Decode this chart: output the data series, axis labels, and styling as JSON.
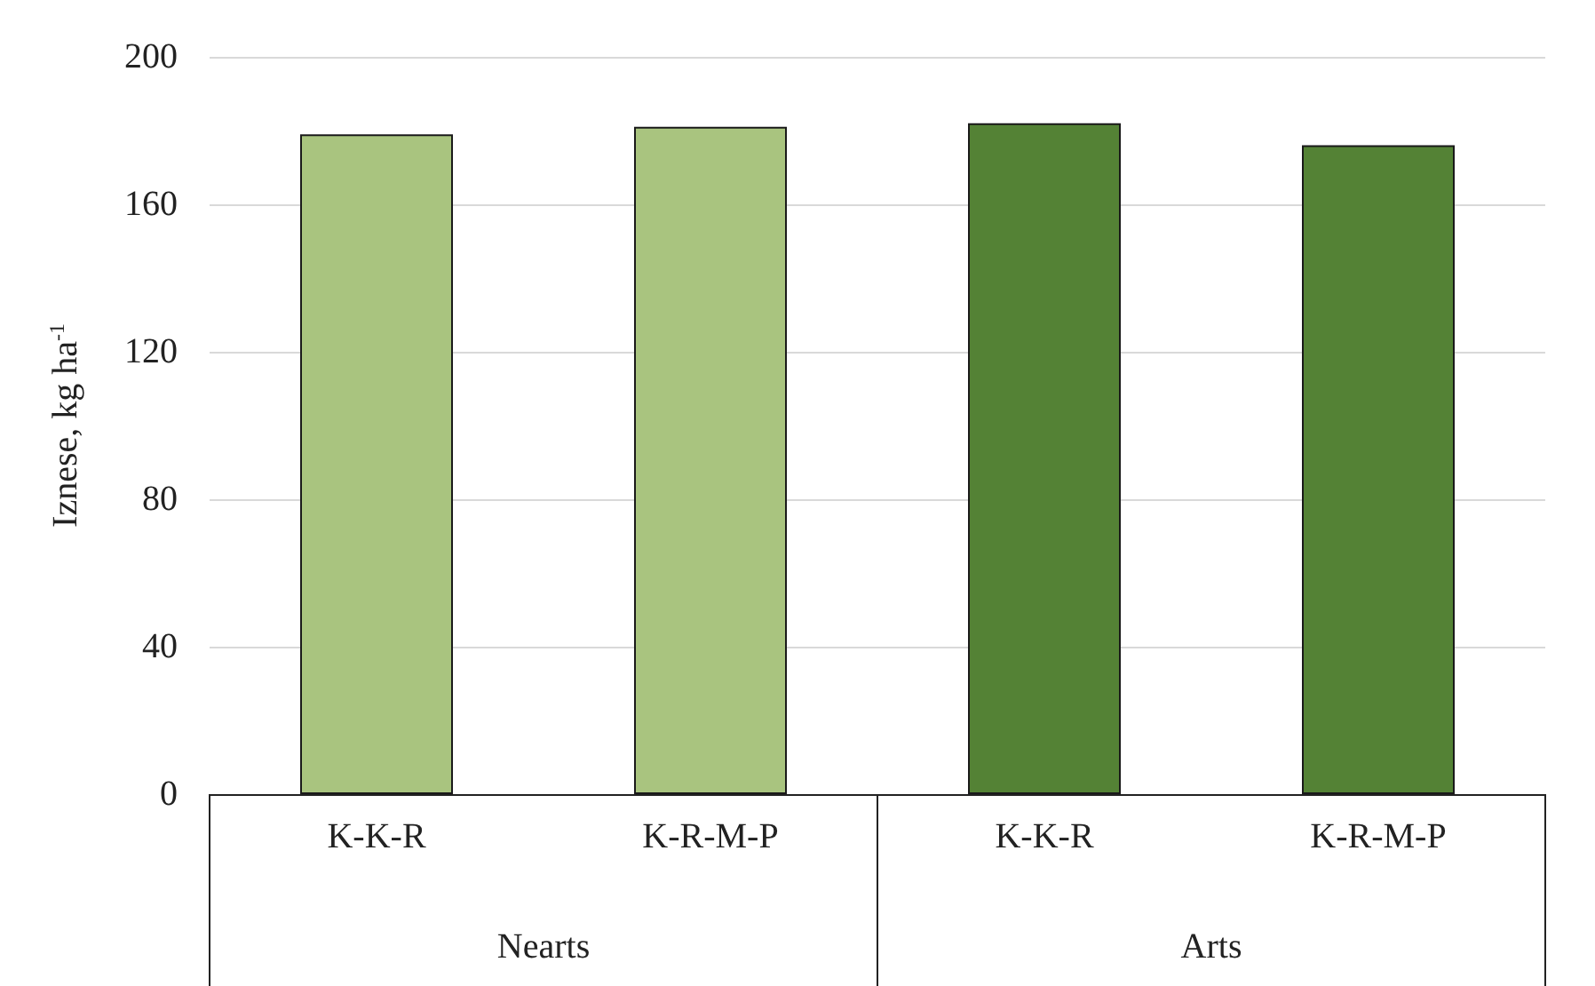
{
  "chart_data": {
    "type": "bar",
    "ylabel": "Iznese, kg ha$^{-1}$",
    "categories": [
      "K-K-R",
      "K-R-M-P",
      "K-K-R",
      "K-R-M-P"
    ],
    "values": [
      179,
      181,
      182,
      176
    ],
    "colors": [
      "#a9c47f",
      "#a9c47f",
      "#548235",
      "#548235"
    ],
    "annotations": [
      "Nearts",
      "Arts"
    ],
    "ylim": [
      0,
      200
    ],
    "yticks": [
      0,
      40,
      80,
      120,
      160,
      200
    ],
    "grid": "y"
  }
}
